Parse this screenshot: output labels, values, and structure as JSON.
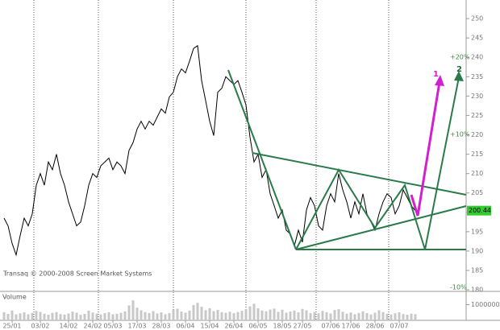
{
  "chart_data": {
    "type": "line",
    "footer": "Transaq © 2000-2008 Screen Market Systems",
    "categories": [
      null,
      null,
      "25/01",
      null,
      null,
      null,
      null,
      null,
      null,
      "03/02",
      null,
      null,
      null,
      null,
      null,
      null,
      "14/02",
      null,
      null,
      null,
      null,
      null,
      "24/02",
      null,
      null,
      null,
      null,
      "05/03",
      null,
      null,
      null,
      null,
      null,
      "17/03",
      null,
      null,
      null,
      null,
      null,
      "28/03",
      null,
      null,
      null,
      null,
      null,
      "06/04",
      null,
      null,
      null,
      null,
      null,
      "15/04",
      null,
      null,
      null,
      null,
      null,
      "26/04",
      null,
      null,
      null,
      null,
      null,
      "06/05",
      null,
      null,
      null,
      null,
      null,
      "18/05",
      null,
      null,
      null,
      null,
      "27/05",
      null,
      null,
      null,
      null,
      null,
      null,
      "07/06",
      null,
      null,
      null,
      null,
      "17/06",
      null,
      null,
      null,
      null,
      null,
      "28/06",
      null,
      null,
      null,
      null,
      null,
      "07/07",
      null,
      null,
      null,
      null
    ],
    "series": [
      {
        "color": "#000000",
        "values": [
          198.5,
          196.5,
          192,
          189,
          194,
          198.5,
          196.5,
          199.6,
          207,
          210,
          207,
          213,
          211,
          215,
          210,
          207,
          202.7,
          199.6,
          196.5,
          197.5,
          201.7,
          207,
          210,
          209,
          212,
          213,
          214,
          211,
          213,
          212,
          210,
          216,
          218,
          221.5,
          223.5,
          221.5,
          223.5,
          222.5,
          224.6,
          226.7,
          225.6,
          229.8,
          231,
          235,
          237,
          236,
          239,
          242.3,
          243,
          234,
          228.8,
          223.5,
          219.8,
          231,
          232,
          235,
          234,
          233,
          234,
          231,
          227.7,
          219.4,
          213,
          215,
          209,
          211,
          204.8,
          201.7,
          198.5,
          200.6,
          195.4,
          194.4,
          191.3,
          195.4,
          192.3,
          200.6,
          203.8,
          201.7,
          196.5,
          195.4,
          201.7,
          204.8,
          202.7,
          210,
          205.8,
          202.7,
          198.5,
          202.7,
          199.6,
          204.8,
          199.6,
          197.5,
          195.4,
          199.6,
          202.7,
          204.8,
          203.8,
          199.6,
          201.7,
          205.8,
          203.8,
          201.7,
          200.44
        ]
      }
    ],
    "ylim": [
      179.6,
      254.8
    ],
    "yticks": [
      180,
      185,
      190,
      195,
      200,
      205,
      210,
      215,
      220,
      225,
      230,
      235,
      240,
      245,
      250
    ],
    "last_value": 200.44,
    "last_color": "#33cc33",
    "annotations": [
      "1",
      "2",
      "+20%",
      "+10%",
      "-10%"
    ],
    "volume": {
      "label": "Volume",
      "color": "#c8c8c8",
      "ylim": [
        0,
        18000000
      ],
      "yticks": [
        {
          "value": 10000000,
          "label": "10000000"
        }
      ],
      "values": [
        5200000,
        4100000,
        6300000,
        3800000,
        4500000,
        5100000,
        3900000,
        4700000,
        6100000,
        5400000,
        4200000,
        3600000,
        4800000,
        5300000,
        4000000,
        3700000,
        4400000,
        5600000,
        4900000,
        3500000,
        4100000,
        6200000,
        5000000,
        4300000,
        3800000,
        4600000,
        5200000,
        3900000,
        4200000,
        4800000,
        5700000,
        9500000,
        12800000,
        8100000,
        6400000,
        5300000,
        4700000,
        5900000,
        4400000,
        5100000,
        3900000,
        4600000,
        6800000,
        7400000,
        5600000,
        4900000,
        6200000,
        9800000,
        11200000,
        8700000,
        6500000,
        7800000,
        5900000,
        6700000,
        5200000,
        4800000,
        5500000,
        4600000,
        5300000,
        6100000,
        7200000,
        8900000,
        10600000,
        7700000,
        6300000,
        5800000,
        6900000,
        7500000,
        5400000,
        6800000,
        4900000,
        5600000,
        6200000,
        5100000,
        7300000,
        6400000,
        4700000,
        5300000,
        4500000,
        6000000,
        5200000,
        4400000,
        6600000,
        7100000,
        5500000,
        4300000,
        5000000,
        3900000,
        4700000,
        5800000,
        4600000,
        3700000,
        4900000,
        6400000,
        5300000,
        4200000,
        3800000,
        4500000,
        5100000,
        4000000,
        3600000,
        4300000,
        3900000
      ]
    }
  }
}
